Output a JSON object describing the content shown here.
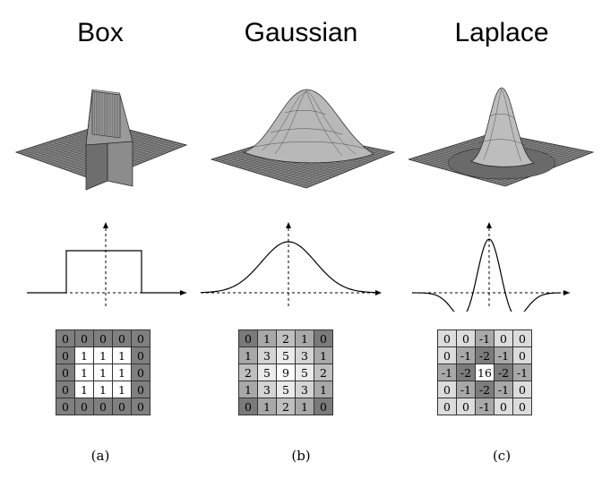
{
  "panels": [
    {
      "title": "Box",
      "caption": "(a)",
      "kernel": [
        [
          0,
          0,
          0,
          0,
          0
        ],
        [
          0,
          1,
          1,
          1,
          0
        ],
        [
          0,
          1,
          1,
          1,
          0
        ],
        [
          0,
          1,
          1,
          1,
          0
        ],
        [
          0,
          0,
          0,
          0,
          0
        ]
      ],
      "shades": {
        "0": "#7f7f7f",
        "1": "#ffffff"
      }
    },
    {
      "title": "Gaussian",
      "caption": "(b)",
      "kernel": [
        [
          0,
          1,
          2,
          1,
          0
        ],
        [
          1,
          3,
          5,
          3,
          1
        ],
        [
          2,
          5,
          9,
          5,
          2
        ],
        [
          1,
          3,
          5,
          3,
          1
        ],
        [
          0,
          1,
          2,
          1,
          0
        ]
      ],
      "shades": {
        "0": "#7a7a7a",
        "1": "#a8a8a8",
        "2": "#bfbfbf",
        "3": "#d4d4d4",
        "5": "#ebebeb",
        "9": "#ffffff"
      }
    },
    {
      "title": "Laplace",
      "caption": "(c)",
      "kernel": [
        [
          0,
          0,
          -1,
          0,
          0
        ],
        [
          0,
          -1,
          -2,
          -1,
          0
        ],
        [
          -1,
          -2,
          16,
          -2,
          -1
        ],
        [
          0,
          -1,
          -2,
          -1,
          0
        ],
        [
          0,
          0,
          -1,
          0,
          0
        ]
      ],
      "shades": {
        "0": "#dcdcdc",
        "-1": "#a8a8a8",
        "-2": "#7c7c7c",
        "16": "#ffffff"
      }
    }
  ]
}
